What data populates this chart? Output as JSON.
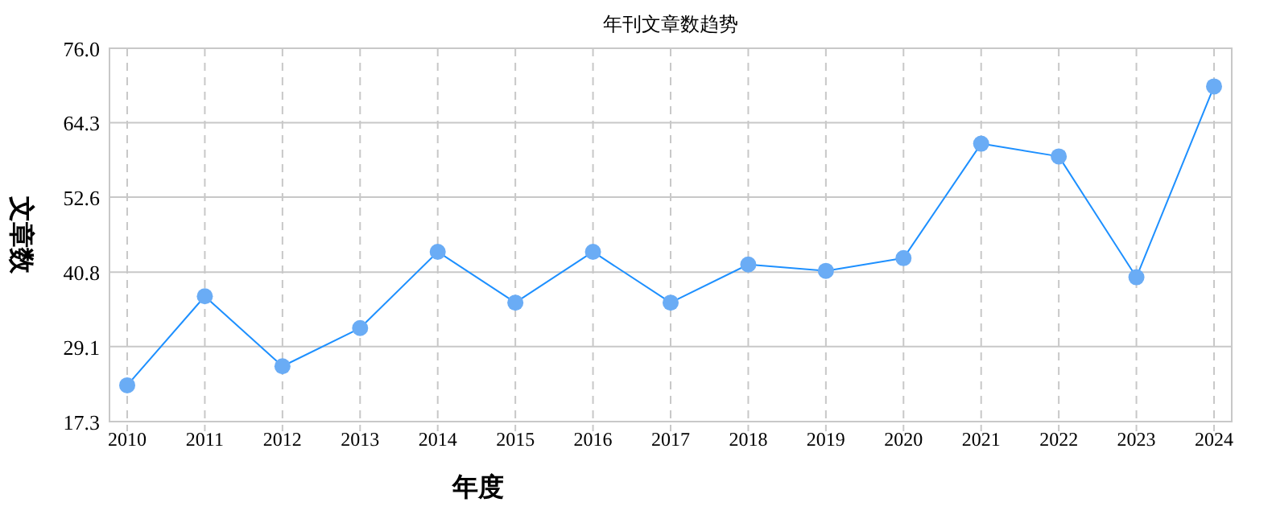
{
  "chart_data": {
    "type": "line",
    "title": "年刊文章数趋势",
    "xlabel": "年度",
    "ylabel": "文章数",
    "categories": [
      "2010",
      "2011",
      "2012",
      "2013",
      "2014",
      "2015",
      "2016",
      "2017",
      "2018",
      "2019",
      "2020",
      "2021",
      "2022",
      "2023",
      "2024"
    ],
    "series": [
      {
        "color": "#1e90ff",
        "values": [
          23,
          37,
          26,
          32,
          44,
          36,
          44,
          36,
          42,
          41,
          43,
          61,
          59,
          40,
          70
        ]
      }
    ],
    "ylim": [
      17.3,
      76.0
    ],
    "yticks": [
      17.3,
      29.1,
      40.8,
      52.6,
      64.3,
      {
        "value": 76,
        "label": "76.0"
      }
    ],
    "grid": true,
    "marker": "circle",
    "line_style": "solid"
  }
}
